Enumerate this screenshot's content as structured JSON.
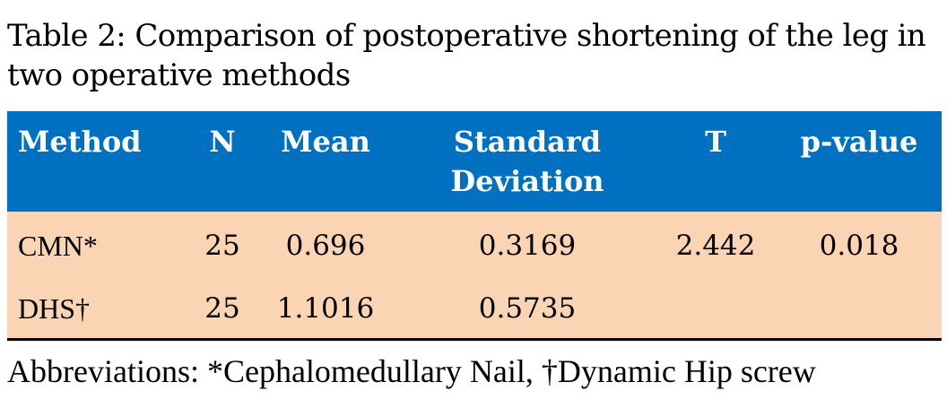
{
  "caption": "Table 2: Comparison of postoperative shortening of the leg in two operative methods",
  "table": {
    "headers": {
      "method": "Method",
      "n": "N",
      "mean": "Mean",
      "sd": "Standard Deviation",
      "t": "T",
      "p": "p-value"
    },
    "rows": [
      {
        "method": "CMN*",
        "n": "25",
        "mean": "0.696",
        "sd": "0.3169",
        "t": "2.442",
        "p": "0.018"
      },
      {
        "method": "DHS†",
        "n": "25",
        "mean": "1.1016",
        "sd": "0.5735",
        "t": "",
        "p": ""
      }
    ]
  },
  "footnote": "Abbreviations: *Cephalomedullary Nail, †Dynamic Hip screw",
  "colors": {
    "header_bg": "#0070c0",
    "header_text": "#ffffff",
    "body_bg": "#fbd4b4"
  }
}
